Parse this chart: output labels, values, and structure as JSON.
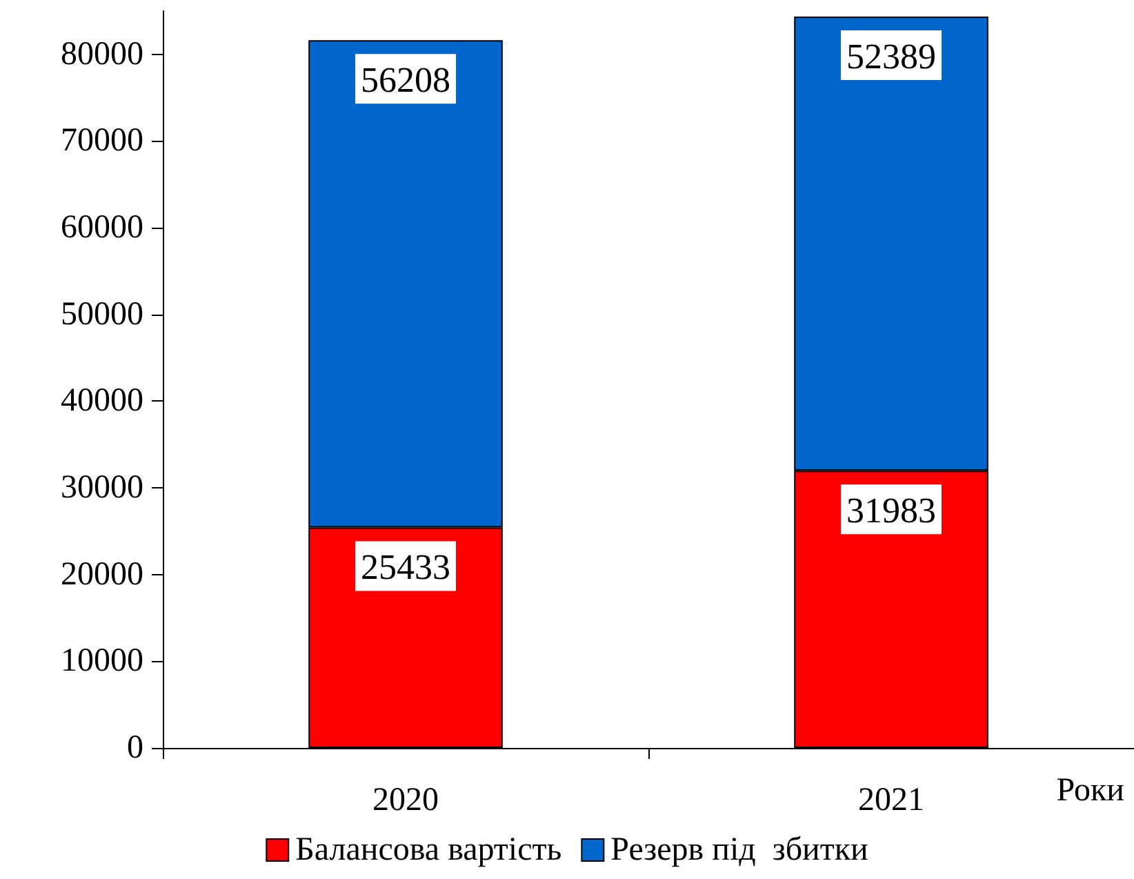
{
  "chart_data": {
    "type": "bar",
    "stacked": true,
    "xlabel": "Роки",
    "categories": [
      "2020",
      "2021"
    ],
    "series": [
      {
        "name": "Балансова вартість",
        "color": "#ff0000",
        "values": [
          25433,
          31983
        ]
      },
      {
        "name": "Резерв під  збитки",
        "color": "#0066cc",
        "values": [
          56208,
          52389
        ]
      }
    ],
    "ylim": [
      0,
      85000
    ],
    "yticks": [
      0,
      10000,
      20000,
      30000,
      40000,
      50000,
      60000,
      70000,
      80000
    ],
    "data_labels": true,
    "grid": false,
    "legend": "bottom"
  }
}
